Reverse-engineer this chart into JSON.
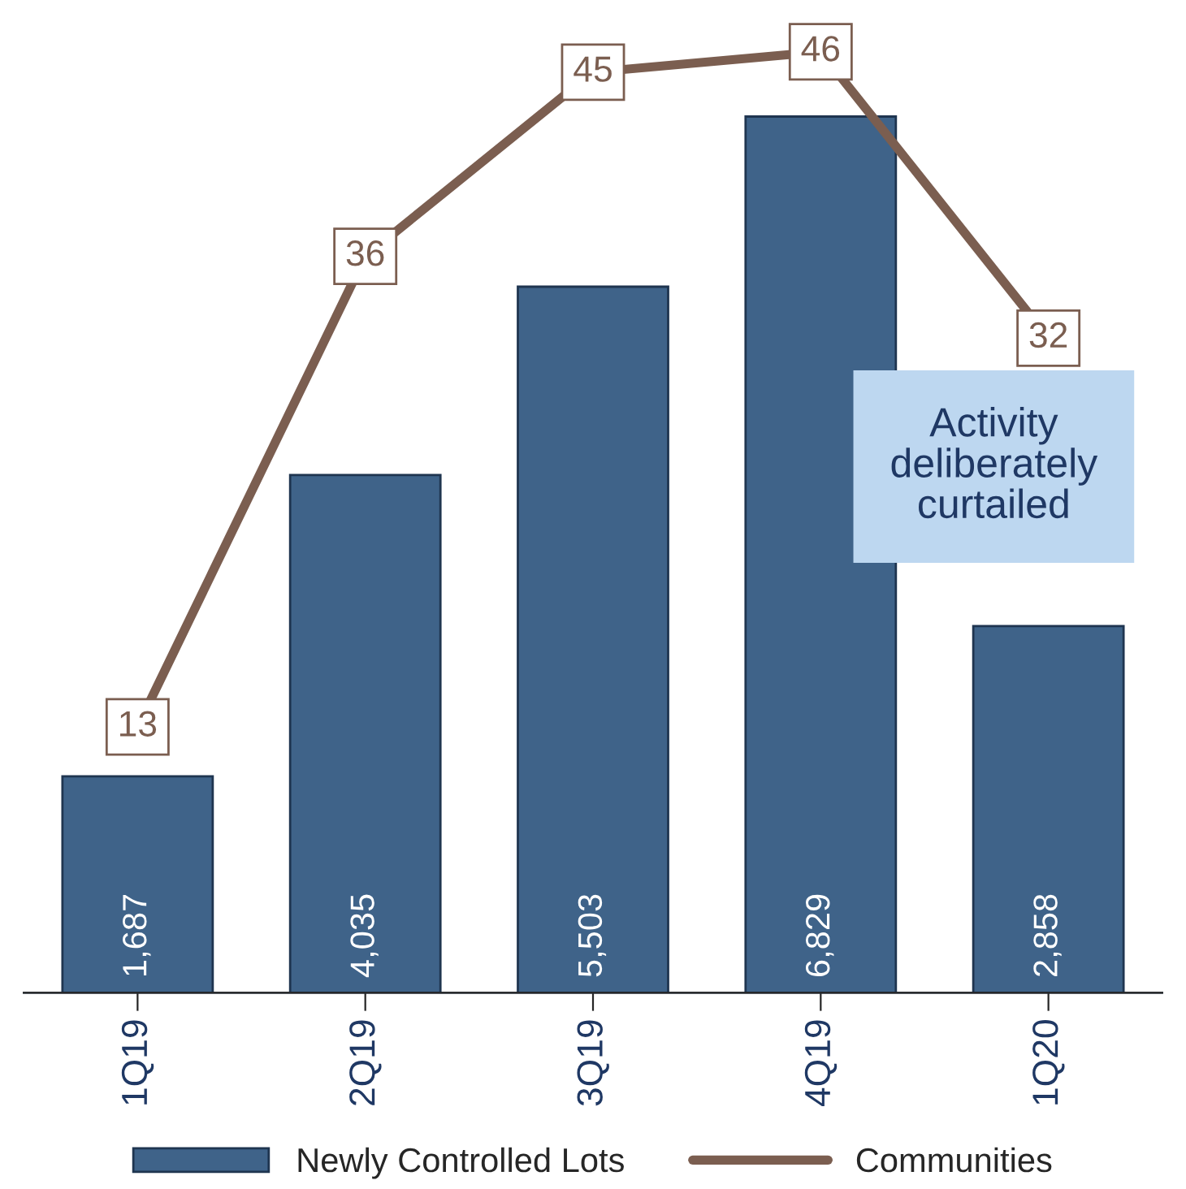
{
  "chart_data": {
    "type": "bar",
    "categories": [
      "1Q19",
      "2Q19",
      "3Q19",
      "4Q19",
      "1Q20"
    ],
    "series": [
      {
        "name": "Newly Controlled Lots",
        "color": "#3f6389",
        "values": [
          1687,
          4035,
          5503,
          6829,
          2858
        ],
        "value_labels": [
          "1,687",
          "4,035",
          "5,503",
          "6,829",
          "2,858"
        ]
      },
      {
        "name": "Communities",
        "type": "line",
        "axis": "y2",
        "color": "#7b5e50",
        "marker": "square",
        "values": [
          13,
          36,
          45,
          46,
          32
        ]
      }
    ],
    "tick_labels": "x",
    "data_labels": true,
    "legend": "bottom",
    "grid": false,
    "annotations": [
      "Activity deliberately curtailed"
    ]
  }
}
